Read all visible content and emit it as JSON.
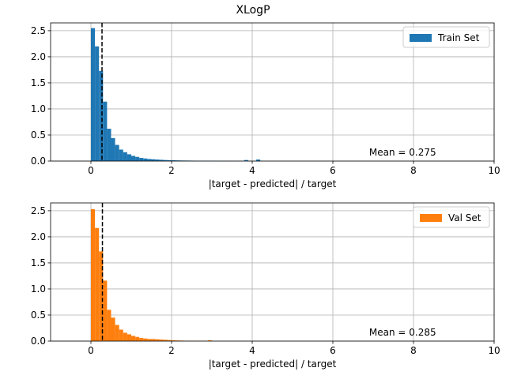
{
  "figure_title": "XLogP",
  "chart_data": [
    {
      "type": "bar",
      "subtype": "histogram",
      "series_name": "Train Set",
      "color": "#1f77b4",
      "xlabel": "|target - predicted| / target",
      "ylabel": "",
      "xlim": [
        -1,
        10
      ],
      "ylim": [
        0,
        2.65
      ],
      "xticks": [
        0,
        2,
        4,
        6,
        8,
        10
      ],
      "yticks": [
        0.0,
        0.5,
        1.0,
        1.5,
        2.0,
        2.5
      ],
      "grid": true,
      "legend_position": "top-right",
      "mean": 0.275,
      "mean_label": "Mean = 0.275",
      "bin_width": 0.1,
      "bins_start": 0.0,
      "values": [
        2.55,
        2.2,
        1.73,
        1.14,
        0.62,
        0.44,
        0.31,
        0.22,
        0.17,
        0.13,
        0.1,
        0.08,
        0.06,
        0.05,
        0.04,
        0.035,
        0.03,
        0.025,
        0.02,
        0.017,
        0.015,
        0.013,
        0.011,
        0.01,
        0.009,
        0.008,
        0.007,
        0.006,
        0.006,
        0.005,
        0.005,
        0.004,
        0.004,
        0.004,
        0.003,
        0.003,
        0.003,
        0.003,
        0.02,
        0.003,
        0.002,
        0.03,
        0.002
      ]
    },
    {
      "type": "bar",
      "subtype": "histogram",
      "series_name": "Val Set",
      "color": "#ff7f0e",
      "xlabel": "|target - predicted| / target",
      "ylabel": "",
      "xlim": [
        -1,
        10
      ],
      "ylim": [
        0,
        2.65
      ],
      "xticks": [
        0,
        2,
        4,
        6,
        8,
        10
      ],
      "yticks": [
        0.0,
        0.5,
        1.0,
        1.5,
        2.0,
        2.5
      ],
      "grid": true,
      "legend_position": "top-right",
      "mean": 0.285,
      "mean_label": "Mean = 0.285",
      "bin_width": 0.1,
      "bins_start": 0.0,
      "values": [
        2.53,
        2.17,
        1.72,
        1.16,
        0.6,
        0.45,
        0.31,
        0.22,
        0.16,
        0.13,
        0.1,
        0.08,
        0.06,
        0.05,
        0.04,
        0.04,
        0.035,
        0.03,
        0.025,
        0.02,
        0.015,
        0.012,
        0.01,
        0.008,
        0.007,
        0.006,
        0.005,
        0.005,
        0.004,
        0.015
      ]
    }
  ]
}
